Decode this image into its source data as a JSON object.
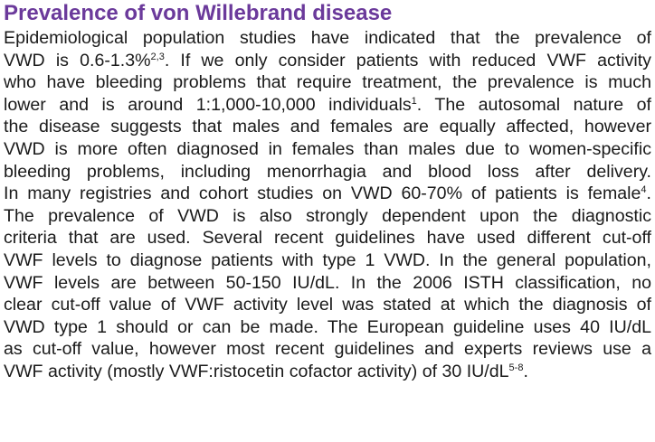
{
  "colors": {
    "heading": "#6b3a9b",
    "text": "#1a1a1a",
    "background": "#ffffff"
  },
  "heading": "Prevalence of von Willebrand disease",
  "lines": [
    {
      "parts": [
        "Epidemiological population studies have indicated that the prevalence of"
      ]
    },
    {
      "parts": [
        "VWD is 0.6-1.3%",
        {
          "sup": "2,3"
        },
        ". If we only consider patients with reduced VWF activity"
      ]
    },
    {
      "parts": [
        "who have bleeding problems that require treatment, the prevalence is much"
      ]
    },
    {
      "parts": [
        "lower and is around 1:1,000-10,000 individuals",
        {
          "sup": "1"
        },
        ". The autosomal nature of"
      ]
    },
    {
      "parts": [
        "the disease suggests that males and females are equally affected, however"
      ]
    },
    {
      "parts": [
        "VWD is more often diagnosed in females than males due to women-specific"
      ]
    },
    {
      "parts": [
        "bleeding problems, including menorrhagia and blood loss after delivery."
      ]
    },
    {
      "parts": [
        "In many registries and cohort studies on VWD 60-70% of patients is female",
        {
          "sup": "4"
        },
        "."
      ]
    },
    {
      "parts": [
        "The prevalence of VWD is also strongly dependent upon the diagnostic"
      ]
    },
    {
      "parts": [
        "criteria that are used. Several recent guidelines have used different cut-off"
      ]
    },
    {
      "parts": [
        "VWF levels to diagnose patients with type 1 VWD. In the general population,"
      ]
    },
    {
      "parts": [
        "VWF levels are between 50-150 IU/dL. In the 2006 ISTH classification, no"
      ]
    },
    {
      "parts": [
        "clear cut-off value of VWF activity level was stated at which the diagnosis of"
      ]
    },
    {
      "parts": [
        "VWD type 1 should or can be made. The European guideline uses 40 IU/dL"
      ]
    },
    {
      "parts": [
        "as cut-off value, however most recent guidelines and experts reviews use a"
      ]
    },
    {
      "parts": [
        "VWF activity (mostly VWF:ristocetin cofactor activity) of 30 IU/dL",
        {
          "sup": "5-8"
        },
        "."
      ]
    }
  ]
}
